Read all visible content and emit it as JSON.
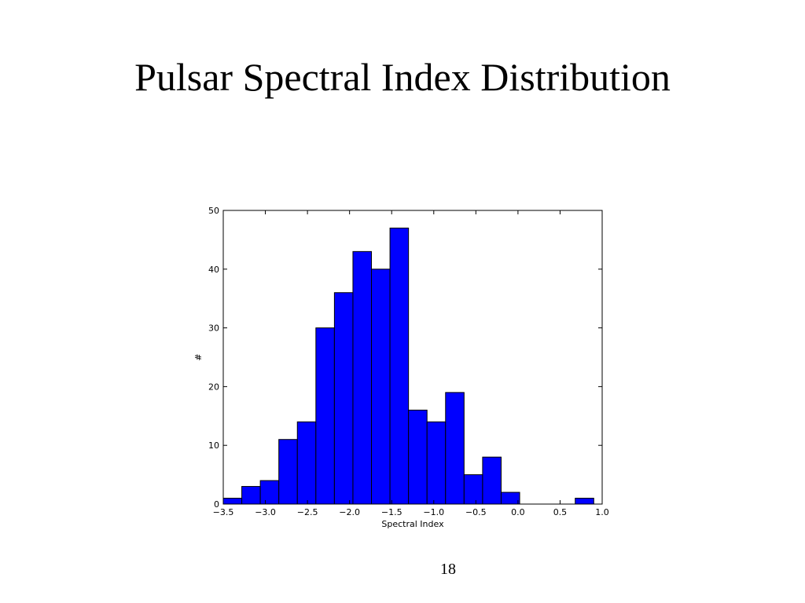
{
  "slide": {
    "title": "Pulsar Spectral Index Distribution",
    "page_number": "18"
  },
  "chart_data": {
    "type": "histogram",
    "xlabel": "Spectral Index",
    "ylabel": "#",
    "bins": [
      -3.5,
      -3.28,
      -3.06,
      -2.84,
      -2.62,
      -2.4,
      -2.18,
      -1.96,
      -1.74,
      -1.52,
      -1.3,
      -1.08,
      -0.86,
      -0.64,
      -0.42,
      -0.2,
      0.02,
      0.24,
      0.46,
      0.68,
      0.9
    ],
    "counts": [
      1,
      3,
      4,
      11,
      14,
      30,
      36,
      43,
      40,
      47,
      16,
      14,
      19,
      5,
      8,
      2,
      0,
      0,
      0,
      1
    ],
    "color": "#0000ff",
    "edgecolor": "#000000",
    "xlim": [
      -3.5,
      1.0
    ],
    "ylim": [
      0,
      50
    ],
    "xticks": [
      {
        "value": -3.5,
        "label": "−3.5"
      },
      {
        "value": -3.0,
        "label": "−3.0"
      },
      {
        "value": -2.5,
        "label": "−2.5"
      },
      {
        "value": -2.0,
        "label": "−2.0"
      },
      {
        "value": -1.5,
        "label": "−1.5"
      },
      {
        "value": -1.0,
        "label": "−1.0"
      },
      {
        "value": -0.5,
        "label": "−0.5"
      },
      {
        "value": 0.0,
        "label": "0.0"
      },
      0.5,
      {
        "value": 1.0,
        "label": "1.0"
      }
    ],
    "yticks": [
      0,
      10,
      20,
      30,
      40,
      50
    ],
    "grid": false
  }
}
